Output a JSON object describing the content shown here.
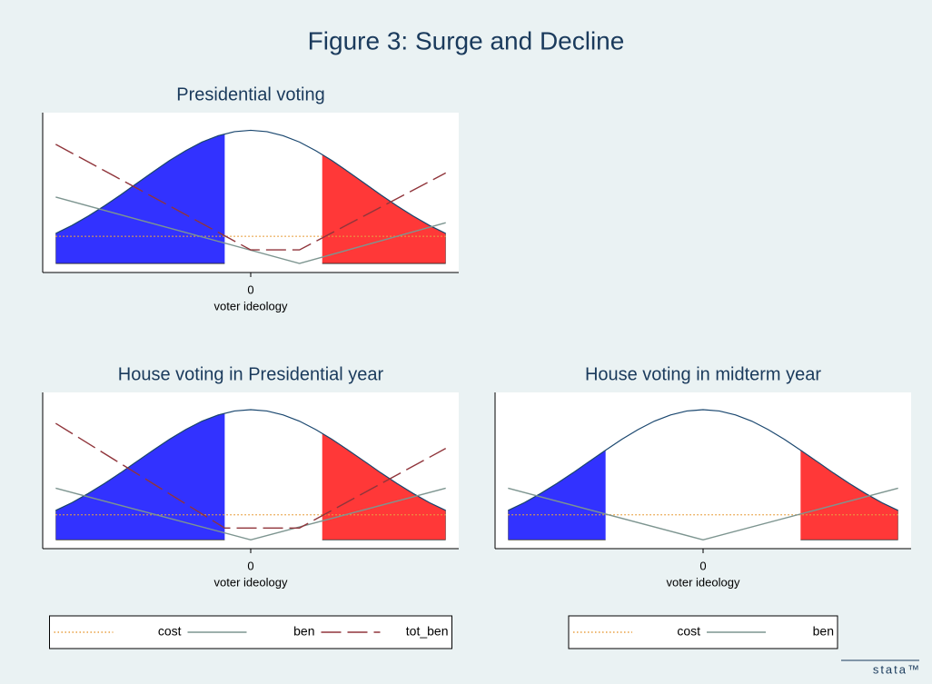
{
  "title": "Figure 3: Surge and Decline",
  "logo": "stata™",
  "chart_data": [
    {
      "type": "line",
      "title": "Presidential voting",
      "x_label": "voter ideology",
      "xlim": [
        -3.2,
        3.2
      ],
      "xticks": [
        0
      ],
      "ylim": [
        -0.06,
        1
      ],
      "legend": false,
      "density": {
        "color": "#1a476f",
        "x": [
          -3,
          -2.75,
          -2.5,
          -2.25,
          -2,
          -1.75,
          -1.5,
          -1.25,
          -1,
          -0.75,
          -0.5,
          -0.25,
          0,
          0.25,
          0.5,
          0.75,
          1,
          1.25,
          1.5,
          1.75,
          2,
          2.25,
          2.5,
          2.75,
          3
        ],
        "values": [
          0.199,
          0.252,
          0.314,
          0.382,
          0.455,
          0.532,
          0.608,
          0.682,
          0.748,
          0.805,
          0.847,
          0.874,
          0.883,
          0.874,
          0.847,
          0.805,
          0.748,
          0.682,
          0.608,
          0.532,
          0.455,
          0.382,
          0.314,
          0.252,
          0.199
        ]
      },
      "shades": [
        {
          "from": -3,
          "to": -0.4,
          "color": "#3232ff"
        },
        {
          "from": 1.1,
          "to": 3,
          "color": "#ff3838"
        }
      ],
      "series": [
        {
          "name": "cost",
          "color": "#e8a040",
          "dash": "dotted",
          "x": [
            -3,
            3
          ],
          "values": [
            0.18,
            0.18
          ]
        },
        {
          "name": "ben",
          "color": "#7d9590",
          "dash": "solid",
          "x": [
            -3,
            0.75,
            3
          ],
          "values": [
            0.44,
            0.0,
            0.27
          ]
        },
        {
          "name": "tot_ben",
          "color": "#90353b",
          "dash": "dashed",
          "x": [
            -3,
            0,
            0.75,
            3
          ],
          "values": [
            0.79,
            0.09,
            0.09,
            0.6
          ]
        }
      ]
    },
    {
      "type": "line",
      "title": "House voting in Presidential year",
      "x_label": "voter ideology",
      "xlim": [
        -3.2,
        3.2
      ],
      "xticks": [
        0
      ],
      "ylim": [
        -0.06,
        1
      ],
      "legend": true,
      "density": {
        "color": "#1a476f",
        "x": [
          -3,
          -2.75,
          -2.5,
          -2.25,
          -2,
          -1.75,
          -1.5,
          -1.25,
          -1,
          -0.75,
          -0.5,
          -0.25,
          0,
          0.25,
          0.5,
          0.75,
          1,
          1.25,
          1.5,
          1.75,
          2,
          2.25,
          2.5,
          2.75,
          3
        ],
        "values": [
          0.199,
          0.252,
          0.314,
          0.382,
          0.455,
          0.532,
          0.608,
          0.682,
          0.748,
          0.805,
          0.847,
          0.874,
          0.883,
          0.874,
          0.847,
          0.805,
          0.748,
          0.682,
          0.608,
          0.532,
          0.455,
          0.382,
          0.314,
          0.252,
          0.199
        ]
      },
      "shades": [
        {
          "from": -3,
          "to": -0.4,
          "color": "#3232ff"
        },
        {
          "from": 1.1,
          "to": 3,
          "color": "#ff3838"
        }
      ],
      "series": [
        {
          "name": "cost",
          "color": "#e8a040",
          "dash": "dotted",
          "x": [
            -3,
            3
          ],
          "values": [
            0.17,
            0.17
          ]
        },
        {
          "name": "ben",
          "color": "#7d9590",
          "dash": "solid",
          "x": [
            -3,
            0,
            3
          ],
          "values": [
            0.35,
            0.0,
            0.35
          ]
        },
        {
          "name": "tot_ben",
          "color": "#90353b",
          "dash": "dashed",
          "x": [
            -3,
            -0.4,
            0.75,
            3
          ],
          "values": [
            0.79,
            0.08,
            0.08,
            0.62
          ]
        }
      ]
    },
    {
      "type": "line",
      "title": "House voting in midterm year",
      "x_label": "voter ideology",
      "xlim": [
        -3.2,
        3.2
      ],
      "xticks": [
        0
      ],
      "ylim": [
        -0.06,
        1
      ],
      "legend": true,
      "density": {
        "color": "#1a476f",
        "x": [
          -3,
          -2.75,
          -2.5,
          -2.25,
          -2,
          -1.75,
          -1.5,
          -1.25,
          -1,
          -0.75,
          -0.5,
          -0.25,
          0,
          0.25,
          0.5,
          0.75,
          1,
          1.25,
          1.5,
          1.75,
          2,
          2.25,
          2.5,
          2.75,
          3
        ],
        "values": [
          0.199,
          0.252,
          0.314,
          0.382,
          0.455,
          0.532,
          0.608,
          0.682,
          0.748,
          0.805,
          0.847,
          0.874,
          0.883,
          0.874,
          0.847,
          0.805,
          0.748,
          0.682,
          0.608,
          0.532,
          0.455,
          0.382,
          0.314,
          0.252,
          0.199
        ]
      },
      "shades": [
        {
          "from": -3,
          "to": -1.5,
          "color": "#3232ff"
        },
        {
          "from": 1.5,
          "to": 3,
          "color": "#ff3838"
        }
      ],
      "series": [
        {
          "name": "cost",
          "color": "#e8a040",
          "dash": "dotted",
          "x": [
            -3,
            3
          ],
          "values": [
            0.17,
            0.17
          ]
        },
        {
          "name": "ben",
          "color": "#7d9590",
          "dash": "solid",
          "x": [
            -3,
            0,
            3
          ],
          "values": [
            0.35,
            0.0,
            0.35
          ]
        }
      ]
    }
  ]
}
